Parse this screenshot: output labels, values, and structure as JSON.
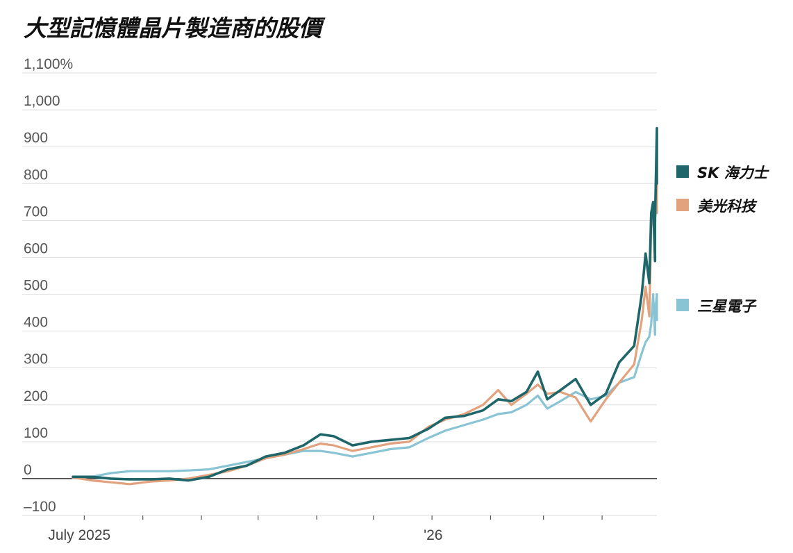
{
  "chart_data": {
    "type": "line",
    "title": "大型記憶體晶片製造商的股價",
    "ylim": [
      -100,
      1100
    ],
    "yticks": [
      1100,
      1000,
      900,
      800,
      700,
      600,
      500,
      400,
      300,
      200,
      100,
      0,
      -100
    ],
    "ytick_labels": [
      "1,100%",
      "1,000",
      "900",
      "800",
      "700",
      "600",
      "500",
      "400",
      "300",
      "200",
      "100",
      "0",
      "–100"
    ],
    "xlim": [
      "2025-06-25",
      "2026-04-30"
    ],
    "xtick_labels": [
      {
        "date": "2025-07-01",
        "label": "July 2025"
      },
      {
        "date": "2026-01-01",
        "label": "'26"
      }
    ],
    "xtick_marks": [
      "2025-07-01",
      "2025-08-01",
      "2025-09-01",
      "2025-10-01",
      "2025-11-01",
      "2025-12-01",
      "2026-01-01",
      "2026-02-01",
      "2026-03-01",
      "2026-04-01"
    ],
    "legend_position": "right",
    "grid": true,
    "series": [
      {
        "name": "SK 海力士",
        "color": "#1e6669",
        "points": [
          [
            "2025-06-25",
            5
          ],
          [
            "2025-07-05",
            5
          ],
          [
            "2025-07-15",
            0
          ],
          [
            "2025-07-25",
            -2
          ],
          [
            "2025-08-05",
            -2
          ],
          [
            "2025-08-15",
            0
          ],
          [
            "2025-08-25",
            -5
          ],
          [
            "2025-09-05",
            5
          ],
          [
            "2025-09-15",
            25
          ],
          [
            "2025-09-25",
            35
          ],
          [
            "2025-10-05",
            60
          ],
          [
            "2025-10-15",
            70
          ],
          [
            "2025-10-25",
            90
          ],
          [
            "2025-11-03",
            120
          ],
          [
            "2025-11-10",
            115
          ],
          [
            "2025-11-20",
            90
          ],
          [
            "2025-11-30",
            100
          ],
          [
            "2025-12-10",
            105
          ],
          [
            "2025-12-20",
            110
          ],
          [
            "2025-12-30",
            135
          ],
          [
            "2026-01-08",
            165
          ],
          [
            "2026-01-18",
            170
          ],
          [
            "2026-01-28",
            185
          ],
          [
            "2026-02-05",
            215
          ],
          [
            "2026-02-12",
            210
          ],
          [
            "2026-02-20",
            235
          ],
          [
            "2026-02-26",
            290
          ],
          [
            "2026-03-03",
            215
          ],
          [
            "2026-03-10",
            240
          ],
          [
            "2026-03-18",
            270
          ],
          [
            "2026-03-26",
            200
          ],
          [
            "2026-04-03",
            230
          ],
          [
            "2026-04-10",
            315
          ],
          [
            "2026-04-18",
            360
          ],
          [
            "2026-04-22",
            500
          ],
          [
            "2026-04-24",
            610
          ],
          [
            "2026-04-26",
            530
          ],
          [
            "2026-04-27",
            720
          ],
          [
            "2026-04-28",
            750
          ],
          [
            "2026-04-29",
            590
          ],
          [
            "2026-04-29",
            700
          ],
          [
            "2026-04-30",
            950
          ],
          [
            "2026-04-30",
            800
          ]
        ]
      },
      {
        "name": "美光科技",
        "color": "#e2a27e",
        "points": [
          [
            "2025-06-25",
            3
          ],
          [
            "2025-07-05",
            -5
          ],
          [
            "2025-07-15",
            -10
          ],
          [
            "2025-07-25",
            -15
          ],
          [
            "2025-08-05",
            -8
          ],
          [
            "2025-08-15",
            -5
          ],
          [
            "2025-08-25",
            0
          ],
          [
            "2025-09-05",
            10
          ],
          [
            "2025-09-15",
            20
          ],
          [
            "2025-09-25",
            35
          ],
          [
            "2025-10-05",
            55
          ],
          [
            "2025-10-15",
            65
          ],
          [
            "2025-10-25",
            80
          ],
          [
            "2025-11-03",
            95
          ],
          [
            "2025-11-10",
            90
          ],
          [
            "2025-11-20",
            75
          ],
          [
            "2025-11-30",
            85
          ],
          [
            "2025-12-10",
            95
          ],
          [
            "2025-12-20",
            100
          ],
          [
            "2025-12-30",
            140
          ],
          [
            "2026-01-08",
            160
          ],
          [
            "2026-01-18",
            175
          ],
          [
            "2026-01-28",
            200
          ],
          [
            "2026-02-05",
            240
          ],
          [
            "2026-02-12",
            200
          ],
          [
            "2026-02-20",
            230
          ],
          [
            "2026-02-26",
            255
          ],
          [
            "2026-03-03",
            230
          ],
          [
            "2026-03-10",
            235
          ],
          [
            "2026-03-18",
            220
          ],
          [
            "2026-03-26",
            155
          ],
          [
            "2026-04-03",
            215
          ],
          [
            "2026-04-10",
            260
          ],
          [
            "2026-04-18",
            310
          ],
          [
            "2026-04-22",
            430
          ],
          [
            "2026-04-24",
            520
          ],
          [
            "2026-04-26",
            440
          ],
          [
            "2026-04-27",
            680
          ],
          [
            "2026-04-28",
            740
          ],
          [
            "2026-04-29",
            600
          ],
          [
            "2026-04-29",
            700
          ],
          [
            "2026-04-30",
            840
          ],
          [
            "2026-04-30",
            720
          ]
        ]
      },
      {
        "name": "三星電子",
        "color": "#89c4d4",
        "points": [
          [
            "2025-06-25",
            2
          ],
          [
            "2025-07-05",
            5
          ],
          [
            "2025-07-15",
            15
          ],
          [
            "2025-07-25",
            20
          ],
          [
            "2025-08-05",
            20
          ],
          [
            "2025-08-15",
            20
          ],
          [
            "2025-08-25",
            22
          ],
          [
            "2025-09-05",
            25
          ],
          [
            "2025-09-15",
            35
          ],
          [
            "2025-09-25",
            45
          ],
          [
            "2025-10-05",
            55
          ],
          [
            "2025-10-15",
            65
          ],
          [
            "2025-10-25",
            75
          ],
          [
            "2025-11-03",
            75
          ],
          [
            "2025-11-10",
            70
          ],
          [
            "2025-11-20",
            60
          ],
          [
            "2025-11-30",
            70
          ],
          [
            "2025-12-10",
            80
          ],
          [
            "2025-12-20",
            85
          ],
          [
            "2025-12-30",
            110
          ],
          [
            "2026-01-08",
            130
          ],
          [
            "2026-01-18",
            145
          ],
          [
            "2026-01-28",
            160
          ],
          [
            "2026-02-05",
            175
          ],
          [
            "2026-02-12",
            180
          ],
          [
            "2026-02-20",
            200
          ],
          [
            "2026-02-26",
            225
          ],
          [
            "2026-03-03",
            190
          ],
          [
            "2026-03-10",
            210
          ],
          [
            "2026-03-18",
            235
          ],
          [
            "2026-03-26",
            215
          ],
          [
            "2026-04-03",
            225
          ],
          [
            "2026-04-10",
            260
          ],
          [
            "2026-04-18",
            275
          ],
          [
            "2026-04-22",
            340
          ],
          [
            "2026-04-24",
            370
          ],
          [
            "2026-04-26",
            385
          ],
          [
            "2026-04-27",
            420
          ],
          [
            "2026-04-28",
            500
          ],
          [
            "2026-04-29",
            390
          ],
          [
            "2026-04-29",
            450
          ],
          [
            "2026-04-30",
            500
          ],
          [
            "2026-04-30",
            430
          ]
        ]
      }
    ]
  }
}
